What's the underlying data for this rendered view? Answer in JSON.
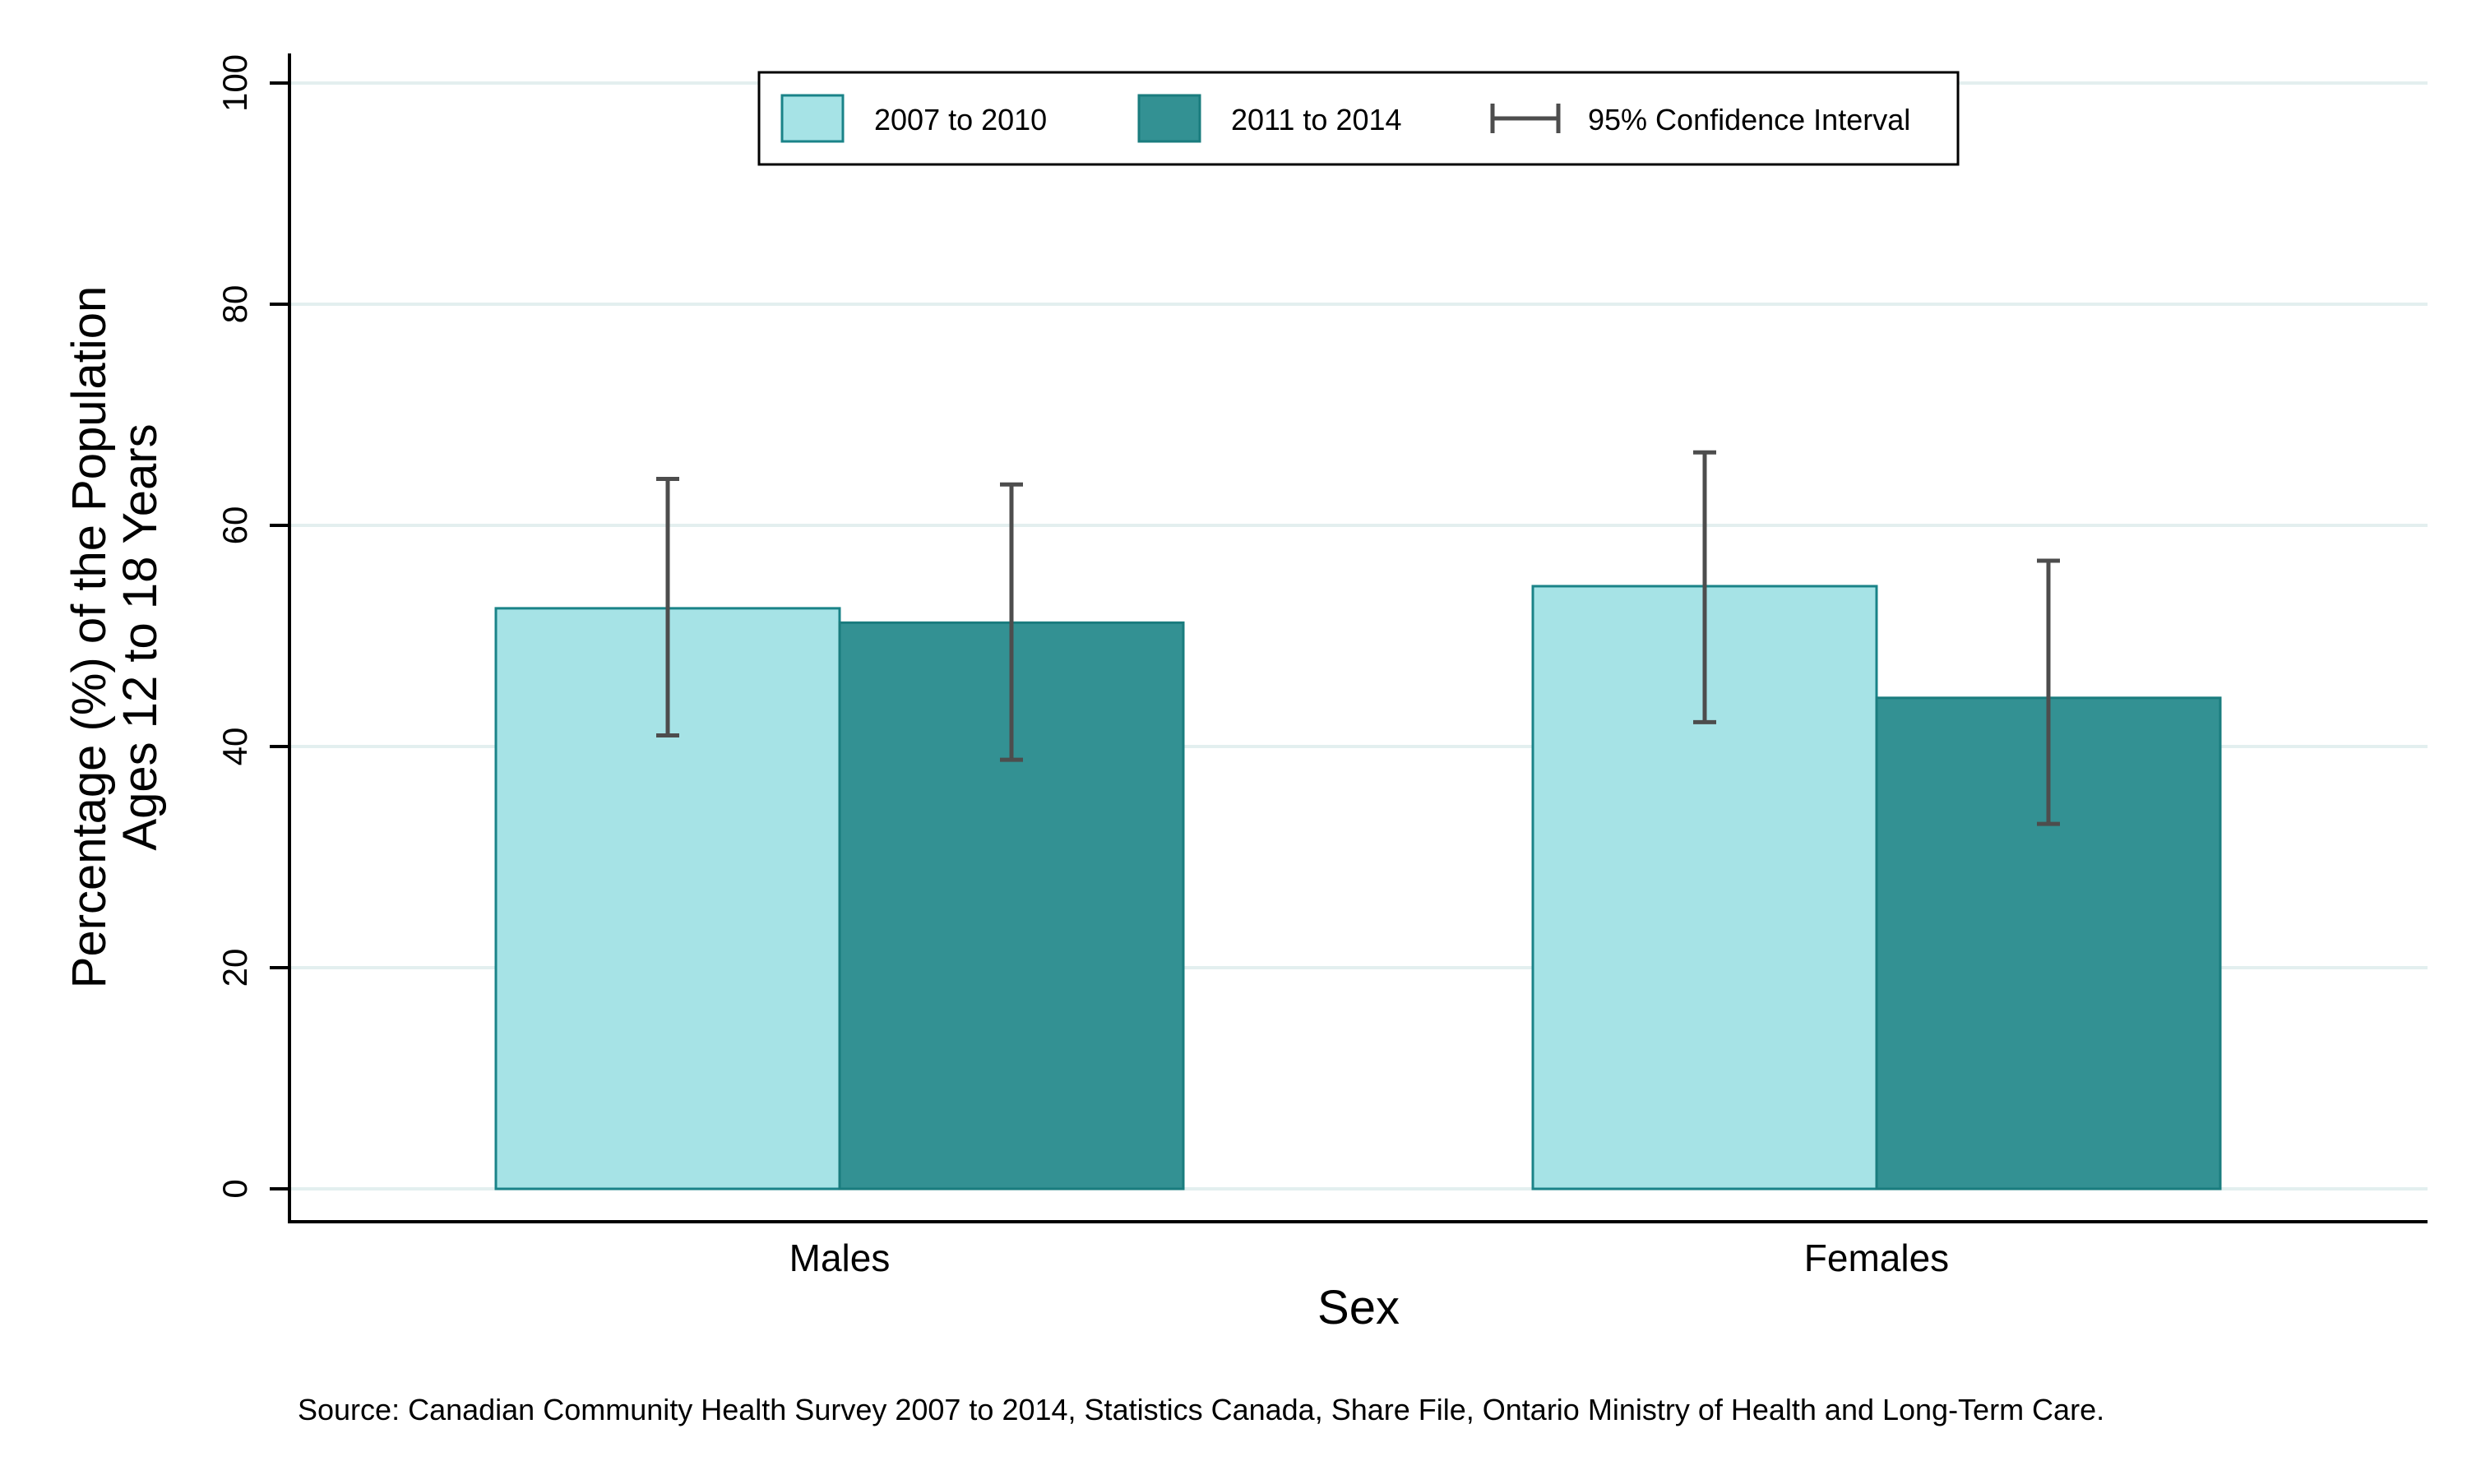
{
  "chart_data": {
    "type": "bar",
    "xlabel": "Sex",
    "ylabel_line1": "Percentage (%) of the Population",
    "ylabel_line2": "Ages 12 to 18 Years",
    "categories": [
      "Males",
      "Females"
    ],
    "series": [
      {
        "name": "2007 to 2010",
        "color": "#a6e3e6",
        "values": [
          52.5,
          54.5
        ],
        "ci_low": [
          41,
          42.2
        ],
        "ci_high": [
          64.2,
          66.6
        ]
      },
      {
        "name": "2011 to 2014",
        "color": "#339193",
        "values": [
          51.2,
          44.4
        ],
        "ci_low": [
          38.8,
          33
        ],
        "ci_high": [
          63.7,
          56.8
        ]
      }
    ],
    "ci_label": "95% Confidence Interval",
    "ylim": [
      0,
      100
    ],
    "yticks": [
      0,
      20,
      40,
      60,
      80,
      100
    ],
    "grid": true,
    "legend_position": "top"
  },
  "source_note": "Source: Canadian Community Health Survey 2007 to 2014, Statistics Canada, Share File, Ontario Ministry of Health and Long-Term Care."
}
